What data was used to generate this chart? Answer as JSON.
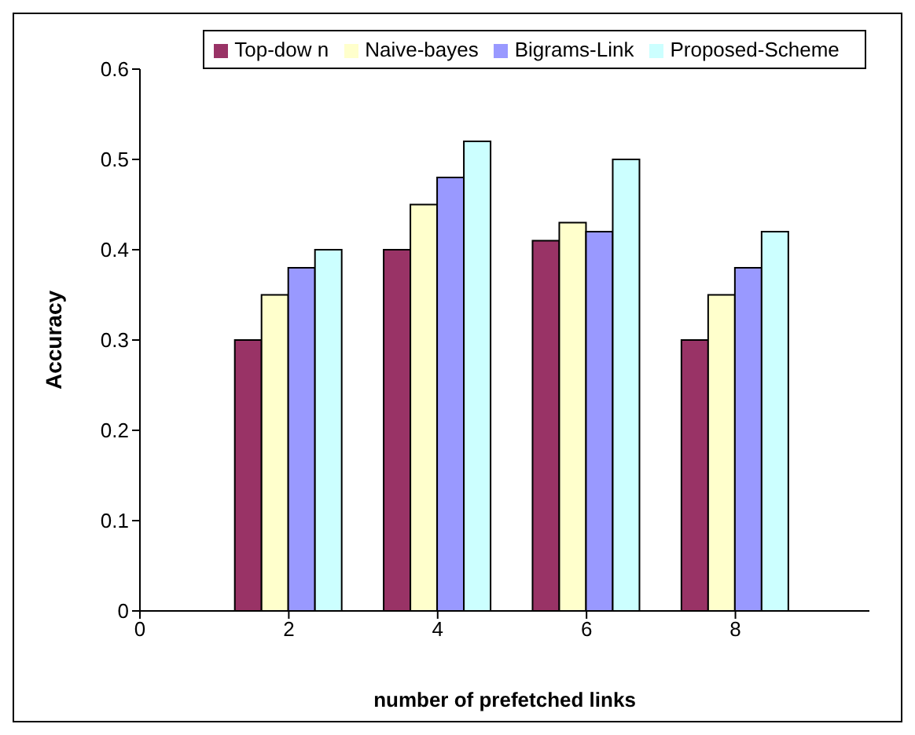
{
  "chart_data": {
    "type": "bar",
    "xlabel": "number of prefetched links",
    "ylabel": "Accuracy",
    "x": [
      2,
      4,
      6,
      8
    ],
    "series": [
      {
        "name": "Top-dow n",
        "color": "#993366",
        "values": [
          0.3,
          0.4,
          0.41,
          0.3
        ]
      },
      {
        "name": "Naive-bayes",
        "color": "#ffffcc",
        "values": [
          0.35,
          0.45,
          0.43,
          0.35
        ]
      },
      {
        "name": "Bigrams-Link",
        "color": "#9999ff",
        "values": [
          0.38,
          0.48,
          0.42,
          0.38
        ]
      },
      {
        "name": "Proposed-Scheme",
        "color": "#ccffff",
        "values": [
          0.4,
          0.52,
          0.5,
          0.42
        ]
      }
    ],
    "xlim": [
      0,
      9.8
    ],
    "xticks": [
      0,
      2,
      4,
      6,
      8
    ],
    "ylim": [
      0,
      0.6
    ],
    "yticks": [
      0,
      0.1,
      0.2,
      0.3,
      0.4,
      0.5,
      0.6
    ],
    "grid": false,
    "legend": "top"
  }
}
